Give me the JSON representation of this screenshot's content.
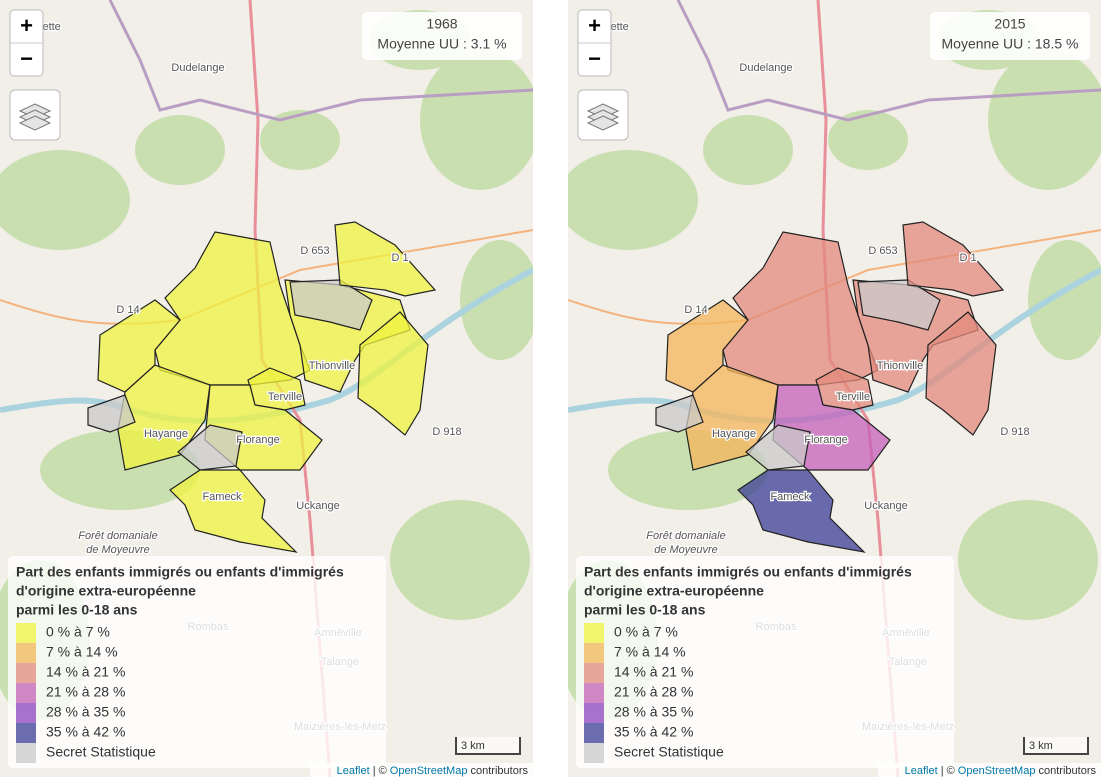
{
  "panels": [
    {
      "year": "1968",
      "mean": "Moyenne UU : 3.1 %"
    },
    {
      "year": "2015",
      "mean": "Moyenne UU : 18.5 %"
    }
  ],
  "controls": {
    "zoom_in": "+",
    "zoom_out": "−"
  },
  "legend": {
    "title": [
      "Part des enfants immigrés ou enfants d'immigrés",
      "d'origine extra-européenne",
      "parmi les 0-18 ans"
    ],
    "items": [
      {
        "label": "0 % à 7 %",
        "color": "#eff33f"
      },
      {
        "label": "7 % à 14 %",
        "color": "#f4b55a"
      },
      {
        "label": "14 % à 21 %",
        "color": "#e38a7c"
      },
      {
        "label": "21 % à 28 %",
        "color": "#c460b8"
      },
      {
        "label": "28 % à 35 %",
        "color": "#8d44c0"
      },
      {
        "label": "35 % à 42 %",
        "color": "#3a3d96"
      },
      {
        "label": "Secret Statistique",
        "color": "#c9c9c9"
      }
    ]
  },
  "scale": "3 km",
  "attribution": {
    "leaflet": "Leaflet",
    "separator": "| ©",
    "osm": "OpenStreetMap",
    "rest": "contributors"
  },
  "places": [
    "Thionville",
    "Terville",
    "Hayange",
    "Florange",
    "Fameck",
    "Uckange",
    "Dudelange",
    "Alzette",
    "Forêt domaniale",
    "de Moyeuvre",
    "Rombas",
    "Amnéville",
    "Talange",
    "Maizières-lès-Metz",
    "D 653",
    "D 14",
    "D 1",
    "D 918"
  ]
}
